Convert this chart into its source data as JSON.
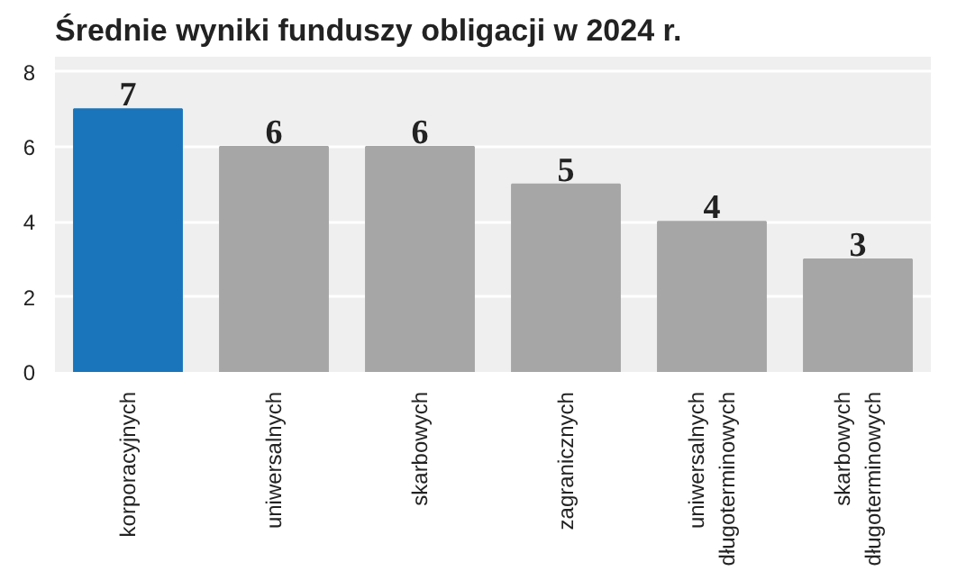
{
  "chart_data": {
    "type": "bar",
    "title": "Średnie wyniki funduszy obligacji w 2024 r.",
    "categories": [
      "korporacyjnych",
      "uniwersalnych",
      "skarbowych",
      "zagranicznych",
      "uniwersalnych\ndługoterminowych",
      "skarbowych\ndługoterminowych"
    ],
    "values": [
      7,
      6,
      6,
      5,
      4,
      3
    ],
    "colors": [
      "#1a75bb",
      "#a6a6a6",
      "#a6a6a6",
      "#a6a6a6",
      "#a6a6a6",
      "#a6a6a6"
    ],
    "ylim": [
      0,
      8.4
    ],
    "yticks": [
      0,
      2,
      4,
      6,
      8
    ],
    "grid": "y",
    "data_labels": true
  }
}
